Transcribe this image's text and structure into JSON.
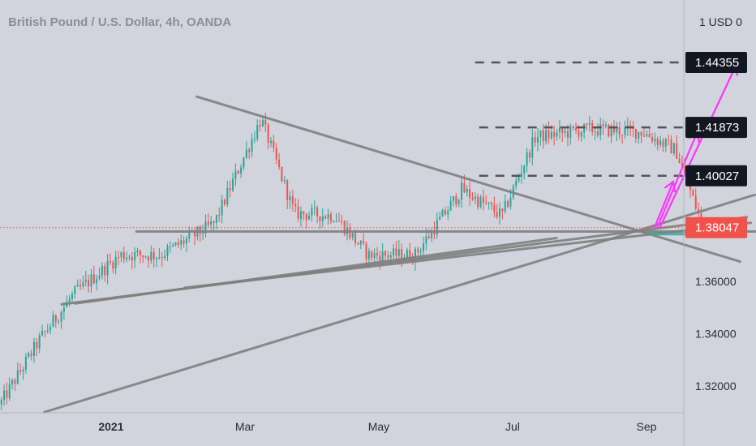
{
  "header": {
    "symbol_title": "British Pound / U.S. Dollar, 4h, OANDA"
  },
  "colors": {
    "background": "#d1d4dc",
    "up_candle": "#26a69a",
    "down_candle": "#ef5350",
    "trendline": "#808080",
    "target_line": "#555555",
    "arrow": "#ff33ff",
    "current_price_badge": "#f0524b",
    "level_badge": "#131722"
  },
  "chart_data": {
    "type": "candlestick",
    "title": "British Pound / U.S. Dollar, 4h, OANDA",
    "y_axis": {
      "unit_label": "1 USD 0",
      "ticks": [
        "1.32000",
        "1.34000",
        "1.36000"
      ],
      "range": [
        1.3096,
        1.4511
      ],
      "scale": "linear",
      "grid": false
    },
    "x_axis": {
      "ticks": [
        {
          "label": "2021",
          "bold": true
        },
        {
          "label": "Mar",
          "bold": false
        },
        {
          "label": "May",
          "bold": false
        },
        {
          "label": "Jul",
          "bold": false
        },
        {
          "label": "Sep",
          "bold": false
        }
      ]
    },
    "price_path": [
      {
        "t": 0,
        "p": 1.313
      },
      {
        "t": 0.3,
        "p": 1.338
      },
      {
        "t": 0.55,
        "p": 1.355
      },
      {
        "t": 0.9,
        "p": 1.37
      },
      {
        "t": 1.2,
        "p": 1.37
      },
      {
        "t": 1.6,
        "p": 1.382
      },
      {
        "t": 1.95,
        "p": 1.422
      },
      {
        "t": 2.2,
        "p": 1.386
      },
      {
        "t": 2.5,
        "p": 1.385
      },
      {
        "t": 2.75,
        "p": 1.37
      },
      {
        "t": 3.1,
        "p": 1.37
      },
      {
        "t": 3.45,
        "p": 1.395
      },
      {
        "t": 3.75,
        "p": 1.385
      },
      {
        "t": 4.0,
        "p": 1.415
      },
      {
        "t": 4.4,
        "p": 1.418
      },
      {
        "t": 4.8,
        "p": 1.417
      },
      {
        "t": 5.05,
        "p": 1.41
      },
      {
        "t": 5.25,
        "p": 1.381
      },
      {
        "t": 5.29,
        "p": 1.3805
      }
    ],
    "current_price": {
      "value": "1.38047",
      "price": 1.38047
    },
    "levels": [
      {
        "value": "1.44355",
        "price": 1.44355
      },
      {
        "value": "1.41873",
        "price": 1.41873
      },
      {
        "value": "1.40027",
        "price": 1.40027
      }
    ],
    "trendlines": [
      {
        "t1": 1.47,
        "p1": 1.4305,
        "t2": 5.53,
        "p2": 1.3675
      },
      {
        "t1": 1.02,
        "p1": 1.379,
        "t2": 5.87,
        "p2": 1.379
      },
      {
        "t1": 0.46,
        "p1": 1.3512,
        "t2": 5.58,
        "p2": 1.3845
      },
      {
        "t1": 0.56,
        "p1": 1.3515,
        "t2": 4.16,
        "p2": 1.3765
      },
      {
        "t1": 0.33,
        "p1": 1.31,
        "t2": 5.64,
        "p2": 1.393
      },
      {
        "t1": 1.38,
        "p1": 1.3575,
        "t2": 5.61,
        "p2": 1.3823
      }
    ],
    "arrows": [
      {
        "t1": 4.89,
        "p1": 1.3805,
        "t2": 5.03,
        "p2": 1.398
      },
      {
        "t1": 4.91,
        "p1": 1.3805,
        "t2": 5.21,
        "p2": 1.417
      },
      {
        "t1": 4.93,
        "p1": 1.3805,
        "t2": 5.5,
        "p2": 1.4425
      }
    ],
    "support_zone": {
      "t1": 4.85,
      "t2": 5.15,
      "p1": 1.3785,
      "p2": 1.3775
    }
  }
}
